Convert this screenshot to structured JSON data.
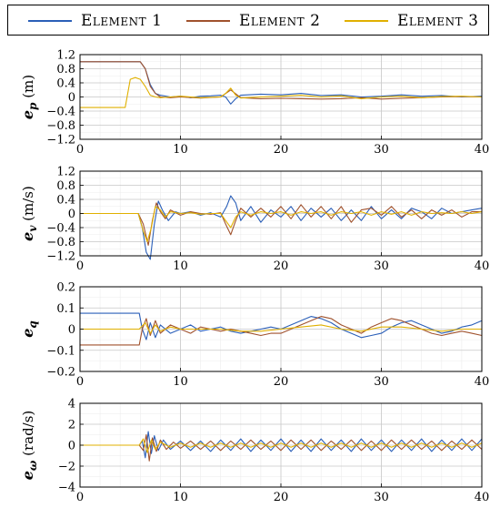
{
  "legend": {
    "items": [
      {
        "label": "Element 1",
        "color": "#2b5fb8"
      },
      {
        "label": "Element 2",
        "color": "#a0522d"
      },
      {
        "label": "Element 3",
        "color": "#e0b000"
      }
    ]
  },
  "chart_data": [
    {
      "type": "line",
      "ylabel_symbol": "e",
      "ylabel_subscript": "p",
      "ylabel_unit": "(m)",
      "xlim": [
        0,
        40
      ],
      "ylim": [
        -1.2,
        1.2
      ],
      "xticks": [
        0,
        10,
        20,
        30,
        40
      ],
      "yticks": [
        -1.2,
        -0.8,
        -0.4,
        0,
        0.4,
        0.8,
        1.2
      ],
      "ytick_labels": [
        "−1.2",
        "−0.8",
        "−0.4",
        "0",
        "0.4",
        "0.8",
        "1.2"
      ],
      "grid": true,
      "series": [
        {
          "name": "Element 1",
          "x": [
            0,
            6,
            6.5,
            7,
            7.5,
            8,
            9,
            10,
            11,
            12,
            13,
            14,
            14.5,
            15,
            15.5,
            16,
            18,
            20,
            22,
            24,
            26,
            28,
            30,
            32,
            34,
            36,
            38,
            40
          ],
          "y": [
            1.0,
            1.0,
            0.8,
            0.35,
            0.1,
            0.05,
            0.0,
            0.02,
            -0.02,
            0.02,
            0.03,
            0.05,
            0.0,
            -0.2,
            -0.05,
            0.05,
            0.08,
            0.06,
            0.1,
            0.04,
            0.06,
            0.0,
            0.02,
            0.06,
            0.02,
            0.04,
            0.0,
            0.02
          ]
        },
        {
          "name": "Element 2",
          "x": [
            0,
            6,
            6.5,
            7,
            7.5,
            8,
            9,
            10,
            12,
            14,
            15,
            16,
            18,
            20,
            22,
            24,
            26,
            28,
            30,
            32,
            34,
            36,
            38,
            40
          ],
          "y": [
            1.0,
            1.0,
            0.8,
            0.3,
            0.1,
            0.0,
            -0.02,
            0.0,
            -0.03,
            0.0,
            0.2,
            -0.02,
            -0.05,
            -0.04,
            -0.05,
            -0.06,
            -0.05,
            -0.02,
            -0.06,
            -0.04,
            -0.02,
            0.0,
            0.01,
            0.0
          ]
        },
        {
          "name": "Element 3",
          "x": [
            0,
            4.5,
            5,
            5.5,
            6,
            6.5,
            7,
            7.5,
            8,
            9,
            10,
            12,
            14,
            14.5,
            15,
            15.5,
            16,
            18,
            20,
            22,
            24,
            26,
            28,
            30,
            32,
            34,
            36,
            38,
            40
          ],
          "y": [
            -0.3,
            -0.3,
            0.5,
            0.55,
            0.5,
            0.3,
            0.05,
            0.0,
            -0.02,
            0.0,
            0.02,
            -0.02,
            0.0,
            0.1,
            0.25,
            0.05,
            -0.03,
            0.0,
            0.02,
            0.05,
            0.0,
            0.03,
            -0.05,
            0.0,
            0.02,
            -0.02,
            0.01,
            0.02,
            0.0
          ]
        }
      ]
    },
    {
      "type": "line",
      "ylabel_symbol": "e",
      "ylabel_subscript": "v",
      "ylabel_unit": "(m/s)",
      "xlim": [
        0,
        40
      ],
      "ylim": [
        -1.2,
        1.2
      ],
      "xticks": [
        0,
        10,
        20,
        30,
        40
      ],
      "yticks": [
        -1.2,
        -0.8,
        -0.4,
        0,
        0.4,
        0.8,
        1.2
      ],
      "ytick_labels": [
        "−1.2",
        "−0.8",
        "−0.4",
        "0",
        "0.4",
        "0.8",
        "1.2"
      ],
      "grid": true,
      "series": [
        {
          "name": "Element 1",
          "x": [
            0,
            5.8,
            6.2,
            6.6,
            7.0,
            7.4,
            7.8,
            8.2,
            8.8,
            9.5,
            10,
            11,
            12,
            13,
            14,
            14.6,
            15,
            15.5,
            16,
            17,
            18,
            19,
            20,
            21,
            22,
            23,
            24,
            25,
            26,
            27,
            28,
            29,
            30,
            31,
            32,
            33,
            34,
            35,
            36,
            37,
            38,
            39,
            40
          ],
          "y": [
            0,
            0,
            -0.4,
            -1.1,
            -1.3,
            -0.3,
            0.35,
            0.1,
            -0.2,
            0.05,
            0.0,
            0.05,
            -0.05,
            0.02,
            -0.1,
            0.2,
            0.5,
            0.3,
            -0.2,
            0.2,
            -0.25,
            0.1,
            -0.1,
            0.2,
            -0.2,
            0.15,
            -0.1,
            0.15,
            -0.2,
            0.1,
            -0.2,
            0.2,
            -0.15,
            0.1,
            -0.15,
            0.15,
            0.05,
            -0.15,
            0.15,
            0.0,
            0.05,
            0.1,
            0.15
          ]
        },
        {
          "name": "Element 2",
          "x": [
            0,
            5.8,
            6.3,
            6.8,
            7.2,
            7.6,
            8.0,
            8.5,
            9.0,
            10,
            11,
            12,
            13,
            14,
            14.5,
            15,
            15.5,
            16,
            17,
            18,
            19,
            20,
            21,
            22,
            23,
            24,
            25,
            26,
            27,
            28,
            29,
            30,
            31,
            32,
            33,
            34,
            35,
            36,
            37,
            38,
            39,
            40
          ],
          "y": [
            0,
            0,
            -0.3,
            -0.9,
            -0.2,
            0.3,
            0.05,
            -0.15,
            0.1,
            -0.05,
            0.05,
            0.0,
            -0.02,
            0.02,
            -0.3,
            -0.6,
            -0.2,
            0.15,
            -0.1,
            0.15,
            -0.1,
            0.2,
            -0.15,
            0.25,
            -0.1,
            0.2,
            -0.15,
            0.2,
            -0.25,
            0.1,
            0.15,
            -0.05,
            0.2,
            -0.1,
            0.1,
            -0.15,
            0.1,
            -0.05,
            0.1,
            -0.1,
            0.05,
            0.05
          ]
        },
        {
          "name": "Element 3",
          "x": [
            0,
            5.8,
            6.3,
            6.7,
            7.1,
            7.5,
            8.0,
            8.5,
            9.0,
            10,
            11,
            12,
            13,
            14,
            14.5,
            15,
            15.5,
            16,
            17,
            18,
            19,
            20,
            21,
            22,
            23,
            24,
            25,
            26,
            27,
            28,
            29,
            30,
            31,
            32,
            33,
            34,
            35,
            36,
            37,
            38,
            39,
            40
          ],
          "y": [
            0,
            0,
            -0.5,
            -0.8,
            -0.4,
            0.2,
            0.1,
            -0.1,
            0.05,
            0.0,
            0.02,
            -0.02,
            0.0,
            0.0,
            -0.2,
            -0.4,
            -0.1,
            0.05,
            -0.05,
            0.05,
            0.0,
            0.05,
            -0.05,
            0.05,
            0.0,
            0.05,
            -0.05,
            0.05,
            0.0,
            0.05,
            -0.05,
            0.05,
            -0.02,
            0.05,
            -0.05,
            0.05,
            0.0,
            0.02,
            0.0,
            0.05,
            0.0,
            0.05
          ]
        }
      ]
    },
    {
      "type": "line",
      "ylabel_symbol": "e",
      "ylabel_subscript": "q",
      "ylabel_unit": "",
      "xlim": [
        0,
        40
      ],
      "ylim": [
        -0.2,
        0.2
      ],
      "xticks": [
        0,
        10,
        20,
        30,
        40
      ],
      "yticks": [
        -0.2,
        -0.1,
        0,
        0.1,
        0.2
      ],
      "ytick_labels": [
        "−0.2",
        "−0.1",
        "0",
        "0.1",
        "0.2"
      ],
      "grid": true,
      "series": [
        {
          "name": "Element 1",
          "x": [
            0,
            5.9,
            6.2,
            6.6,
            7.0,
            7.5,
            8,
            9,
            10,
            11,
            12,
            13,
            14,
            15,
            16,
            17,
            18,
            19,
            20,
            21,
            22,
            23,
            24,
            25,
            26,
            27,
            28,
            29,
            30,
            31,
            32,
            33,
            34,
            35,
            36,
            37,
            38,
            39,
            40
          ],
          "y": [
            0.075,
            0.075,
            0.0,
            -0.05,
            0.03,
            -0.04,
            0.02,
            -0.02,
            0.0,
            0.02,
            -0.01,
            0.0,
            0.01,
            -0.01,
            -0.02,
            -0.01,
            0.0,
            0.01,
            0.0,
            0.02,
            0.04,
            0.06,
            0.05,
            0.03,
            0.0,
            -0.02,
            -0.04,
            -0.03,
            -0.02,
            0.01,
            0.03,
            0.04,
            0.02,
            0.0,
            -0.02,
            -0.01,
            0.01,
            0.02,
            0.04
          ]
        },
        {
          "name": "Element 2",
          "x": [
            0,
            5.9,
            6.2,
            6.6,
            7.0,
            7.5,
            8,
            9,
            10,
            11,
            12,
            13,
            14,
            15,
            16,
            17,
            18,
            19,
            20,
            21,
            22,
            23,
            24,
            25,
            26,
            27,
            28,
            29,
            30,
            31,
            32,
            33,
            34,
            35,
            36,
            37,
            38,
            39,
            40
          ],
          "y": [
            -0.075,
            -0.075,
            0.0,
            0.05,
            -0.03,
            0.04,
            -0.02,
            0.02,
            0.0,
            -0.02,
            0.01,
            0.0,
            -0.01,
            0.0,
            -0.01,
            -0.02,
            -0.03,
            -0.02,
            -0.02,
            0.0,
            0.02,
            0.04,
            0.06,
            0.05,
            0.02,
            0.0,
            -0.02,
            0.01,
            0.03,
            0.05,
            0.04,
            0.02,
            0.0,
            -0.02,
            -0.03,
            -0.02,
            -0.01,
            -0.02,
            -0.03
          ]
        },
        {
          "name": "Element 3",
          "x": [
            0,
            5.9,
            6.5,
            7.0,
            7.5,
            8,
            9,
            10,
            12,
            14,
            16,
            18,
            20,
            22,
            24,
            26,
            28,
            30,
            32,
            34,
            36,
            38,
            40
          ],
          "y": [
            0,
            0,
            0.03,
            -0.02,
            0.02,
            -0.01,
            0.01,
            0.0,
            0.0,
            0.0,
            -0.01,
            -0.01,
            0.0,
            0.01,
            0.02,
            0.0,
            -0.01,
            0.01,
            0.01,
            0.0,
            -0.01,
            0.0,
            0.0
          ]
        }
      ]
    },
    {
      "type": "line",
      "ylabel_symbol": "e",
      "ylabel_subscript": "ω",
      "ylabel_unit": "(rad/s)",
      "xlim": [
        0,
        40
      ],
      "ylim": [
        -4,
        4
      ],
      "xticks": [
        0,
        10,
        20,
        30,
        40
      ],
      "yticks": [
        -4,
        -2,
        0,
        2,
        4
      ],
      "ytick_labels": [
        "−4",
        "−2",
        "0",
        "2",
        "4"
      ],
      "grid": true,
      "series": [
        {
          "name": "Element 1",
          "x": [
            0,
            5.9,
            6.2,
            6.5,
            6.8,
            7.1,
            7.4,
            7.8,
            8.3,
            9,
            10,
            11,
            12,
            13,
            14,
            15,
            16,
            17,
            18,
            19,
            20,
            21,
            22,
            23,
            24,
            25,
            26,
            27,
            28,
            29,
            30,
            31,
            32,
            33,
            34,
            35,
            36,
            37,
            38,
            39,
            40
          ],
          "y": [
            0,
            0,
            0.4,
            -1.2,
            1.3,
            -0.8,
            0.9,
            -0.5,
            0.5,
            -0.4,
            0.4,
            -0.5,
            0.4,
            -0.6,
            0.5,
            -0.5,
            0.6,
            -0.6,
            0.5,
            -0.5,
            0.6,
            -0.6,
            0.5,
            -0.6,
            0.6,
            -0.5,
            0.5,
            -0.6,
            0.6,
            -0.5,
            0.5,
            -0.6,
            0.5,
            -0.5,
            0.6,
            -0.6,
            0.5,
            -0.5,
            0.6,
            -0.5,
            0.6
          ]
        },
        {
          "name": "Element 2",
          "x": [
            0,
            5.9,
            6.3,
            6.6,
            6.9,
            7.2,
            7.6,
            8.0,
            8.6,
            9.3,
            10,
            11,
            12,
            13,
            14,
            15,
            16,
            17,
            18,
            19,
            20,
            21,
            22,
            23,
            24,
            25,
            26,
            27,
            28,
            29,
            30,
            31,
            32,
            33,
            34,
            35,
            36,
            37,
            38,
            39,
            40
          ],
          "y": [
            0,
            0,
            -0.5,
            1.0,
            -1.5,
            0.7,
            -0.6,
            0.5,
            -0.4,
            0.3,
            -0.3,
            0.4,
            -0.4,
            0.4,
            -0.5,
            0.4,
            -0.4,
            0.5,
            -0.4,
            0.4,
            -0.5,
            0.5,
            -0.4,
            0.5,
            -0.5,
            0.4,
            -0.4,
            0.5,
            -0.5,
            0.4,
            -0.5,
            0.5,
            -0.4,
            0.5,
            -0.4,
            0.4,
            -0.5,
            0.4,
            -0.4,
            0.5,
            -0.4
          ]
        },
        {
          "name": "Element 3",
          "x": [
            0,
            5.9,
            6.3,
            6.7,
            7.1,
            7.5,
            8.0,
            9,
            10,
            11,
            12,
            13,
            14,
            15,
            16,
            17,
            18,
            19,
            20,
            21,
            22,
            23,
            24,
            25,
            26,
            27,
            28,
            29,
            30,
            31,
            32,
            33,
            34,
            35,
            36,
            37,
            38,
            39,
            40
          ],
          "y": [
            0,
            0,
            0.6,
            -0.7,
            0.5,
            -0.4,
            0.3,
            -0.2,
            0.2,
            -0.2,
            0.2,
            -0.2,
            0.2,
            -0.2,
            0.2,
            -0.2,
            0.2,
            -0.2,
            0.2,
            -0.2,
            0.2,
            -0.2,
            0.2,
            -0.2,
            0.2,
            -0.2,
            0.2,
            -0.2,
            0.2,
            -0.2,
            0.2,
            -0.2,
            0.2,
            -0.2,
            0.2,
            -0.2,
            0.2,
            -0.2,
            0.2
          ]
        }
      ]
    }
  ]
}
